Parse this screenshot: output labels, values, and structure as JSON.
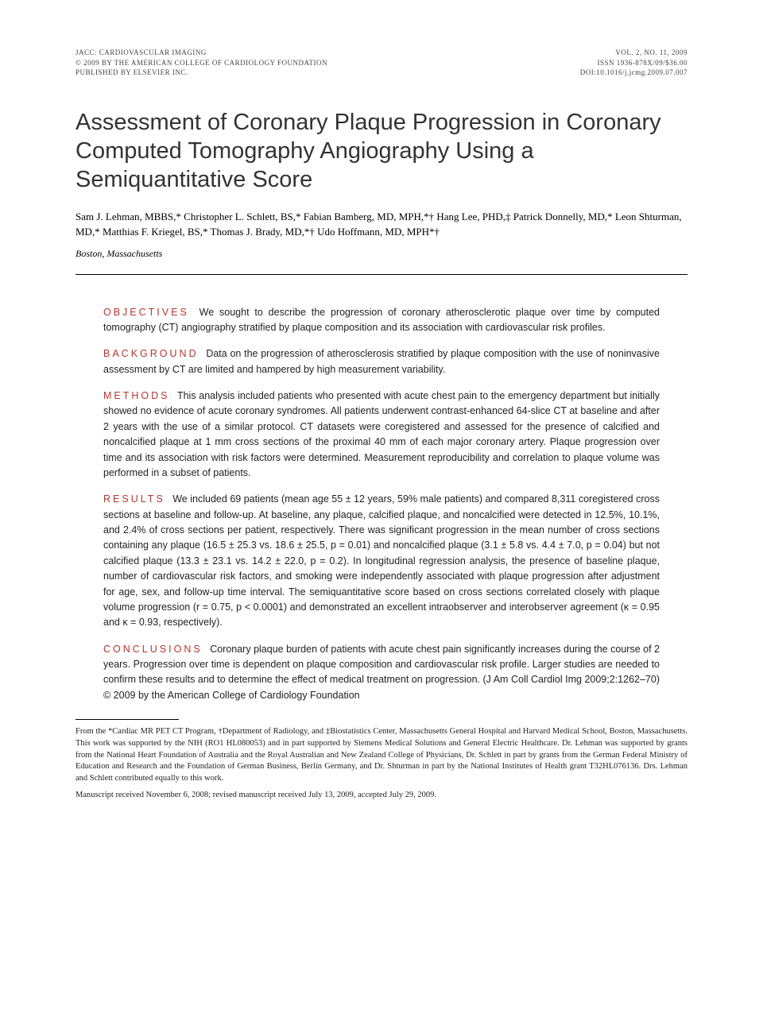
{
  "header": {
    "left_line1": "JACC: CARDIOVASCULAR IMAGING",
    "left_line2": "© 2009 BY THE AMERICAN COLLEGE OF CARDIOLOGY FOUNDATION",
    "left_line3": "PUBLISHED BY ELSEVIER INC.",
    "right_line1": "VOL. 2, NO. 11, 2009",
    "right_line2": "ISSN 1936-878X/09/$36.00",
    "right_line3": "DOI:10.1016/j.jcmg.2009.07.007"
  },
  "title": "Assessment of Coronary Plaque Progression in Coronary Computed Tomography Angiography Using a Semiquantitative Score",
  "authors": "Sam J. Lehman, MBBS,* Christopher L. Schlett, BS,* Fabian Bamberg, MD, MPH,*† Hang Lee, PHD,‡ Patrick Donnelly, MD,* Leon Shturman, MD,* Matthias F. Kriegel, BS,* Thomas J. Brady, MD,*† Udo Hoffmann, MD, MPH*†",
  "location": "Boston, Massachusetts",
  "abstract": {
    "objectives": {
      "label": "OBJECTIVES",
      "text": "We sought to describe the progression of coronary atherosclerotic plaque over time by computed tomography (CT) angiography stratified by plaque composition and its association with cardiovascular risk profiles."
    },
    "background": {
      "label": "BACKGROUND",
      "text": "Data on the progression of atherosclerosis stratified by plaque composition with the use of noninvasive assessment by CT are limited and hampered by high measurement variability."
    },
    "methods": {
      "label": "METHODS",
      "text": "This analysis included patients who presented with acute chest pain to the emergency department but initially showed no evidence of acute coronary syndromes. All patients underwent contrast-enhanced 64-slice CT at baseline and after 2 years with the use of a similar protocol. CT datasets were coregistered and assessed for the presence of calcified and noncalcified plaque at 1 mm cross sections of the proximal 40 mm of each major coronary artery. Plaque progression over time and its association with risk factors were determined. Measurement reproducibility and correlation to plaque volume was performed in a subset of patients."
    },
    "results": {
      "label": "RESULTS",
      "text": "We included 69 patients (mean age 55 ± 12 years, 59% male patients) and compared 8,311 coregistered cross sections at baseline and follow-up. At baseline, any plaque, calcified plaque, and noncalcified were detected in 12.5%, 10.1%, and 2.4% of cross sections per patient, respectively. There was significant progression in the mean number of cross sections containing any plaque (16.5 ± 25.3 vs. 18.6 ± 25.5, p = 0.01) and noncalcified plaque (3.1 ± 5.8 vs. 4.4 ± 7.0, p = 0.04) but not calcified plaque (13.3 ± 23.1 vs. 14.2 ± 22.0, p = 0.2). In longitudinal regression analysis, the presence of baseline plaque, number of cardiovascular risk factors, and smoking were independently associated with plaque progression after adjustment for age, sex, and follow-up time interval. The semiquantitative score based on cross sections correlated closely with plaque volume progression (r = 0.75, p < 0.0001) and demonstrated an excellent intraobserver and interobserver agreement (κ = 0.95 and κ = 0.93, respectively)."
    },
    "conclusions": {
      "label": "CONCLUSIONS",
      "text": "Coronary plaque burden of patients with acute chest pain significantly increases during the course of 2 years. Progression over time is dependent on plaque composition and cardiovascular risk profile. Larger studies are needed to confirm these results and to determine the effect of medical treatment on progression.   (J Am Coll Cardiol Img 2009;2:1262–70) © 2009 by the American College of Cardiology Foundation"
    }
  },
  "footnote": {
    "affiliations": "From the *Cardiac MR PET CT Program, †Department of Radiology, and ‡Biostatistics Center, Massachusetts General Hospital and Harvard Medical School, Boston, Massachusetts. This work was supported by the NIH (RO1 HL080053) and in part supported by Siemens Medical Solutions and General Electric Healthcare. Dr. Lehman was supported by grants from the National Heart Foundation of Australia and the Royal Australian and New Zealand College of Physicians, Dr. Schlett in part by grants from the German Federal Ministry of Education and Research and the Foundation of German Business, Berlin Germany, and Dr. Shturman in part by the National Institutes of Health grant T32HL076136. Drs. Lehman and Schlett contributed equally to this work.",
    "manuscript": "Manuscript received November 6, 2008; revised manuscript received July 13, 2009, accepted July 29, 2009."
  },
  "colors": {
    "section_label": "#b8362f",
    "body_text": "#222222",
    "header_text": "#444444"
  }
}
